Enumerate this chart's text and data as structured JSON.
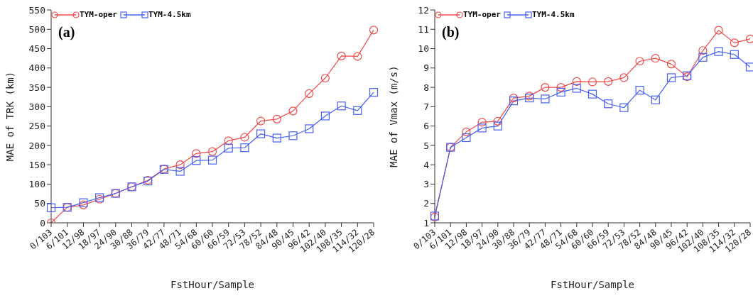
{
  "chart_data": [
    {
      "type": "line",
      "xlabel": "FstHour/Sample",
      "ylabel": "MAE of TRK (km)",
      "annotations": [
        "(a)"
      ],
      "categories": [
        "0/103",
        "6/101",
        "12/98",
        "18/97",
        "24/90",
        "30/88",
        "36/79",
        "42/77",
        "48/71",
        "54/68",
        "60/60",
        "66/59",
        "72/53",
        "78/52",
        "84/48",
        "90/45",
        "96/42",
        "102/40",
        "108/35",
        "114/32",
        "120/28"
      ],
      "ylim": [
        0,
        550
      ],
      "yticks": [
        0,
        50,
        100,
        150,
        200,
        250,
        300,
        350,
        400,
        450,
        500,
        550
      ],
      "grid": false,
      "legend": "top left",
      "series": [
        {
          "name": "TYM-oper",
          "color": "#f04848",
          "marker": "circle",
          "values": [
            0,
            40,
            46,
            61,
            76,
            93,
            110,
            139,
            150,
            179,
            184,
            212,
            221,
            263,
            268,
            289,
            334,
            374,
            431,
            430,
            498
          ]
        },
        {
          "name": "TYM-4.5km",
          "color": "#4860f0",
          "marker": "square",
          "values": [
            39,
            40,
            52,
            65,
            76,
            93,
            108,
            138,
            133,
            161,
            162,
            193,
            194,
            230,
            219,
            225,
            243,
            276,
            302,
            290,
            337
          ]
        }
      ]
    },
    {
      "type": "line",
      "xlabel": "FstHour/Sample",
      "ylabel": "MAE of Vmax (m/s)",
      "annotations": [
        "(b)"
      ],
      "categories": [
        "0/103",
        "6/101",
        "12/98",
        "18/97",
        "24/90",
        "30/88",
        "36/79",
        "42/77",
        "48/71",
        "54/68",
        "60/60",
        "66/59",
        "72/53",
        "78/52",
        "84/48",
        "90/45",
        "96/42",
        "102/40",
        "108/35",
        "114/32",
        "120/28"
      ],
      "ylim": [
        1,
        12
      ],
      "yticks": [
        1,
        2,
        3,
        4,
        5,
        6,
        7,
        8,
        9,
        10,
        11,
        12
      ],
      "grid": false,
      "legend": "top left",
      "series": [
        {
          "name": "TYM-oper",
          "color": "#f04848",
          "marker": "circle",
          "values": [
            1.3,
            4.9,
            5.7,
            6.2,
            6.25,
            7.45,
            7.55,
            8.0,
            8.0,
            8.3,
            8.28,
            8.3,
            8.5,
            9.35,
            9.5,
            9.2,
            8.55,
            9.9,
            10.95,
            10.3,
            10.5
          ]
        },
        {
          "name": "TYM-4.5km",
          "color": "#4860f0",
          "marker": "square",
          "values": [
            1.35,
            4.9,
            5.4,
            5.9,
            6.0,
            7.3,
            7.45,
            7.4,
            7.75,
            7.95,
            7.65,
            7.15,
            6.95,
            7.85,
            7.35,
            8.5,
            8.6,
            9.55,
            9.85,
            9.7,
            9.05
          ]
        }
      ]
    }
  ]
}
